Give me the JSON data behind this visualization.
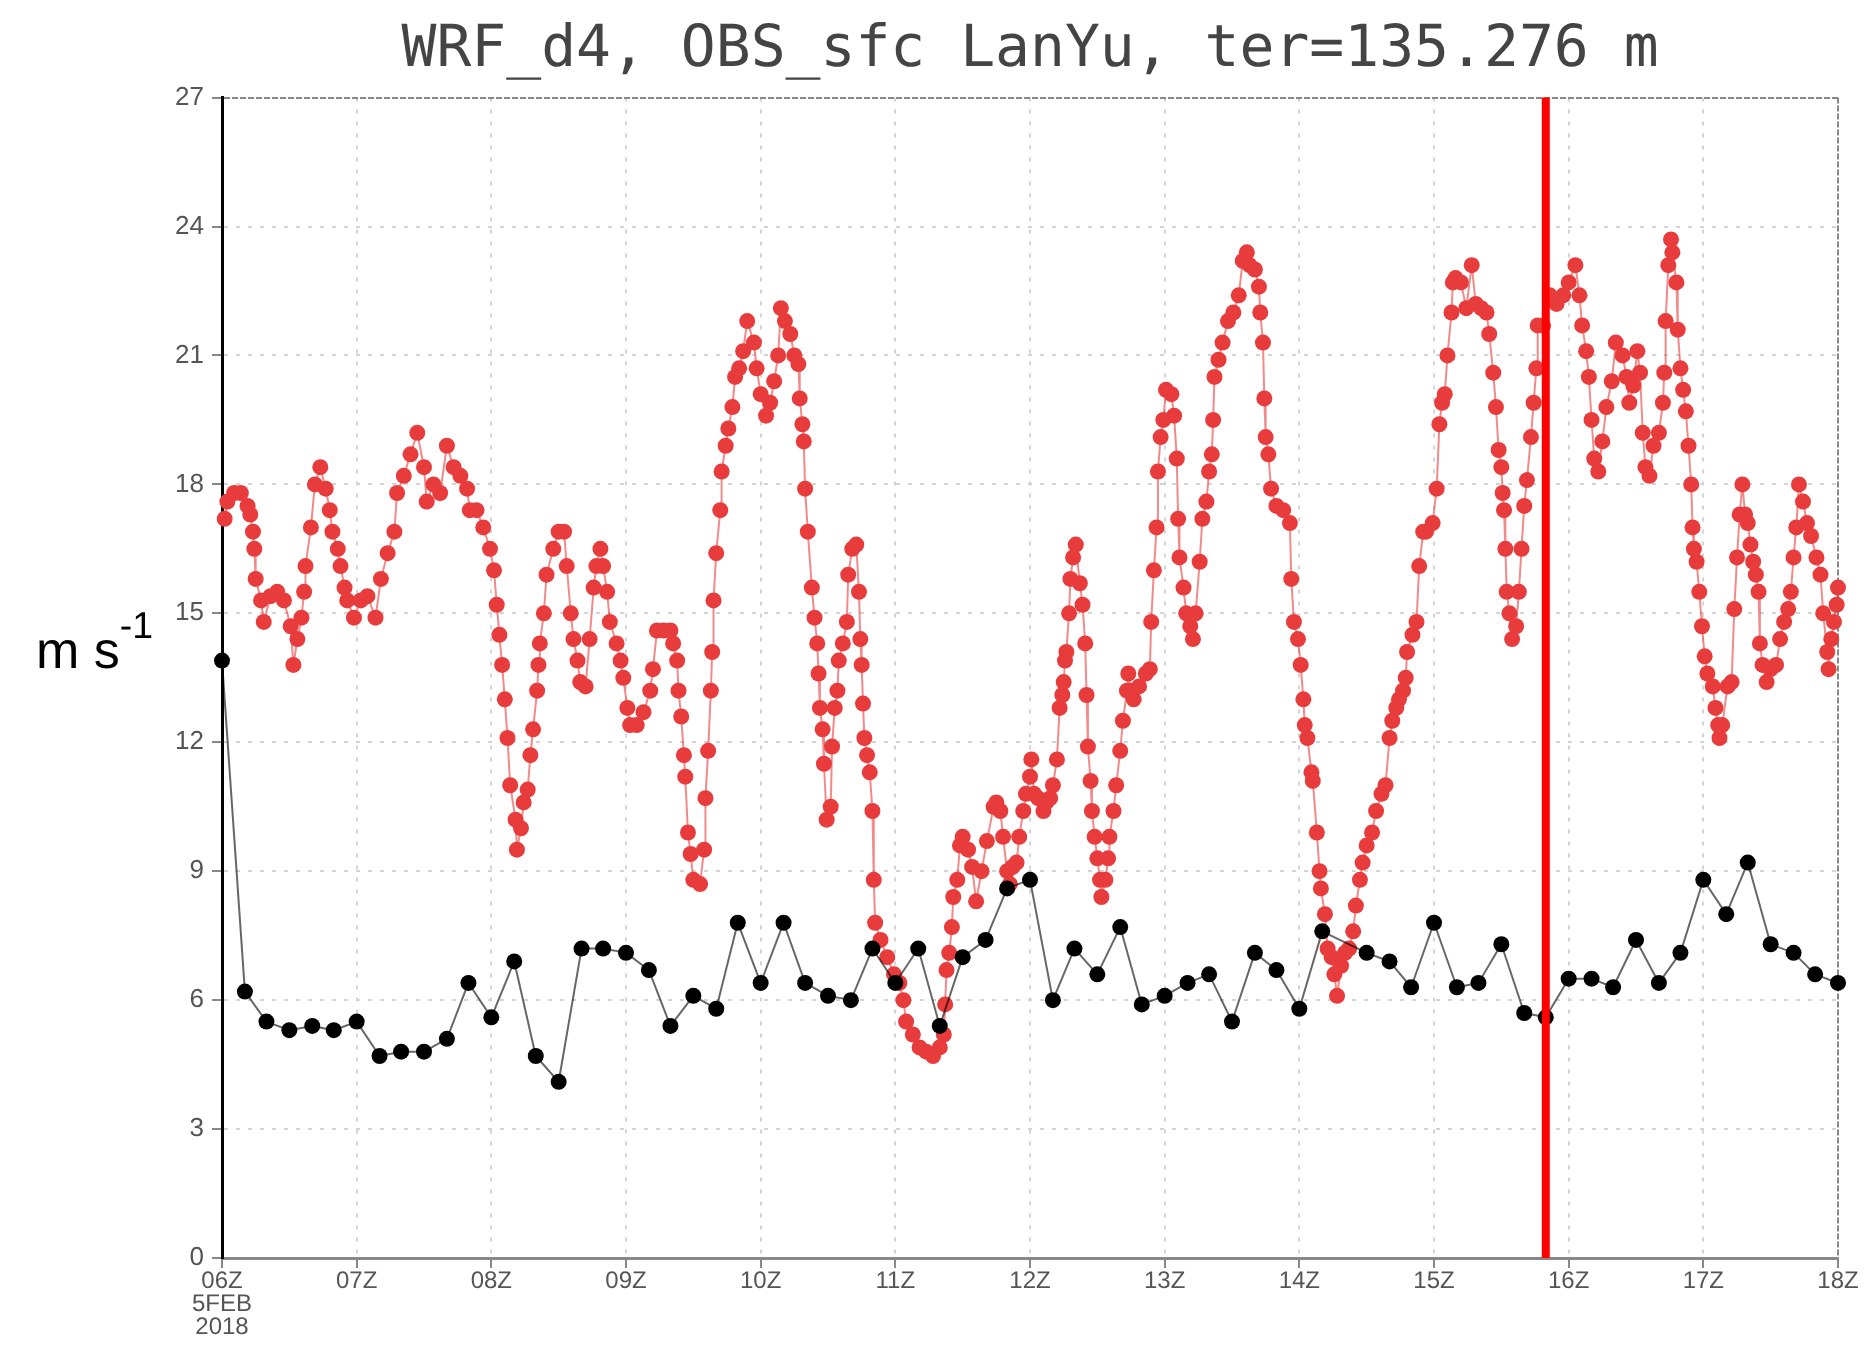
{
  "chart_data": {
    "type": "line",
    "title": "WRF_d4, OBS_sfc LanYu, ter=135.276 m",
    "ylabel": "m s$^{-1}$",
    "xlim": [
      6,
      18
    ],
    "xticks": [
      {
        "value": 6,
        "label": "06Z\n5FEB\n2018"
      },
      {
        "value": 7,
        "label": "07Z"
      },
      {
        "value": 8,
        "label": "08Z"
      },
      {
        "value": 9,
        "label": "09Z"
      },
      {
        "value": 10,
        "label": "10Z"
      },
      {
        "value": 11,
        "label": "11Z"
      },
      {
        "value": 12,
        "label": "12Z"
      },
      {
        "value": 13,
        "label": "13Z"
      },
      {
        "value": 14,
        "label": "14Z"
      },
      {
        "value": 15,
        "label": "15Z"
      },
      {
        "value": 16,
        "label": "16Z"
      },
      {
        "value": 17,
        "label": "17Z"
      },
      {
        "value": 18,
        "label": "18Z"
      }
    ],
    "ylim": [
      0,
      27
    ],
    "yticks": [
      0,
      3,
      6,
      9,
      12,
      15,
      18,
      21,
      24,
      27
    ],
    "grid": true,
    "marker": "circle",
    "series": [
      {
        "color": "#e83c3c",
        "x": [
          6.02,
          6.04,
          6.09,
          6.14,
          6.19,
          6.21,
          6.23,
          6.24,
          6.25,
          6.29,
          6.31,
          6.36,
          6.41,
          6.46,
          6.51,
          6.53,
          6.56,
          6.59,
          6.61,
          6.62,
          6.66,
          6.69,
          6.73,
          6.77,
          6.8,
          6.82,
          6.86,
          6.88,
          6.91,
          6.93,
          6.98,
          7.03,
          7.08,
          7.14,
          7.18,
          7.23,
          7.28,
          7.3,
          7.35,
          7.4,
          7.45,
          7.5,
          7.52,
          7.57,
          7.62,
          7.67,
          7.72,
          7.77,
          7.82,
          7.84,
          7.89,
          7.94,
          7.99,
          8.02,
          8.04,
          8.06,
          8.08,
          8.1,
          8.12,
          8.14,
          8.18,
          8.19,
          8.22,
          8.24,
          8.27,
          8.29,
          8.31,
          8.34,
          8.35,
          8.36,
          8.39,
          8.41,
          8.46,
          8.5,
          8.54,
          8.56,
          8.59,
          8.61,
          8.64,
          8.66,
          8.7,
          8.73,
          8.76,
          8.78,
          8.81,
          8.83,
          8.86,
          8.88,
          8.93,
          8.96,
          8.98,
          9.01,
          9.03,
          9.08,
          9.13,
          9.18,
          9.2,
          9.23,
          9.28,
          9.33,
          9.35,
          9.38,
          9.39,
          9.41,
          9.43,
          9.44,
          9.46,
          9.48,
          9.5,
          9.55,
          9.58,
          9.59,
          9.61,
          9.63,
          9.64,
          9.65,
          9.67,
          9.7,
          9.71,
          9.74,
          9.76,
          9.79,
          9.81,
          9.84,
          9.87,
          9.9,
          9.95,
          9.97,
          10,
          10.04,
          10.07,
          10.1,
          10.13,
          10.15,
          10.18,
          10.22,
          10.25,
          10.28,
          10.29,
          10.31,
          10.32,
          10.33,
          10.35,
          10.38,
          10.4,
          10.42,
          10.43,
          10.44,
          10.46,
          10.47,
          10.49,
          10.52,
          10.53,
          10.55,
          10.57,
          10.58,
          10.61,
          10.64,
          10.65,
          10.68,
          10.71,
          10.73,
          10.74,
          10.75,
          10.76,
          10.77,
          10.79,
          10.81,
          10.83,
          10.84,
          10.85,
          10.89,
          10.94,
          10.99,
          11.03,
          11.06,
          11.08,
          11.13,
          11.18,
          11.23,
          11.28,
          11.33,
          11.36,
          11.37,
          11.38,
          11.4,
          11.42,
          11.43,
          11.46,
          11.48,
          11.5,
          11.54,
          11.57,
          11.6,
          11.64,
          11.68,
          11.73,
          11.75,
          11.78,
          11.8,
          11.83,
          11.85,
          11.87,
          11.9,
          11.92,
          11.95,
          11.97,
          12,
          12.01,
          12.03,
          12.06,
          12.1,
          12.12,
          12.15,
          12.17,
          12.2,
          12.22,
          12.24,
          12.25,
          12.26,
          12.27,
          12.29,
          12.3,
          12.32,
          12.34,
          12.37,
          12.39,
          12.41,
          12.42,
          12.43,
          12.45,
          12.46,
          12.48,
          12.5,
          12.52,
          12.53,
          12.56,
          12.58,
          12.59,
          12.62,
          12.64,
          12.67,
          12.69,
          12.72,
          12.73,
          12.74,
          12.77,
          12.81,
          12.86,
          12.89,
          12.9,
          12.92,
          12.94,
          12.95,
          12.97,
          12.99,
          13.01,
          13.05,
          13.07,
          13.09,
          13.1,
          13.11,
          13.14,
          13.16,
          13.19,
          13.21,
          13.23,
          13.26,
          13.28,
          13.31,
          13.33,
          13.35,
          13.36,
          13.37,
          13.4,
          13.43,
          13.47,
          13.51,
          13.55,
          13.58,
          13.61,
          13.63,
          13.67,
          13.7,
          13.71,
          13.73,
          13.74,
          13.75,
          13.77,
          13.79,
          13.83,
          13.88,
          13.93,
          13.94,
          13.96,
          13.99,
          14.01,
          14.03,
          14.04,
          14.06,
          14.09,
          14.1,
          14.13,
          14.15,
          14.16,
          14.19,
          14.21,
          14.24,
          14.26,
          14.28,
          14.31,
          14.34,
          14.37,
          14.4,
          14.42,
          14.45,
          14.47,
          14.5,
          14.54,
          14.57,
          14.61,
          14.64,
          14.67,
          14.69,
          14.72,
          14.74,
          14.77,
          14.79,
          14.8,
          14.84,
          14.87,
          14.89,
          14.92,
          14.94,
          14.99,
          15.02,
          15.04,
          15.06,
          15.08,
          15.1,
          15.13,
          15.14,
          15.16,
          15.2,
          15.24,
          15.28,
          15.31,
          15.35,
          15.39,
          15.41,
          15.44,
          15.46,
          15.48,
          15.5,
          15.51,
          15.52,
          15.53,
          15.54,
          15.56,
          15.58,
          15.61,
          15.63,
          15.65,
          15.67,
          15.69,
          15.72,
          15.74,
          15.76,
          15.77,
          15.81,
          15.86,
          15.91,
          15.96,
          16,
          16.05,
          16.08,
          16.1,
          16.13,
          16.15,
          16.17,
          16.19,
          16.22,
          16.25,
          16.28,
          16.32,
          16.35,
          16.4,
          16.43,
          16.45,
          16.48,
          16.51,
          16.53,
          16.55,
          16.57,
          16.6,
          16.63,
          16.67,
          16.7,
          16.71,
          16.72,
          16.74,
          16.76,
          16.77,
          16.8,
          16.81,
          16.83,
          16.85,
          16.87,
          16.89,
          16.91,
          16.92,
          16.93,
          16.95,
          16.97,
          16.99,
          17.01,
          17.03,
          17.07,
          17.09,
          17.11,
          17.12,
          17.14,
          17.18,
          17.21,
          17.23,
          17.25,
          17.27,
          17.29,
          17.31,
          17.33,
          17.35,
          17.37,
          17.39,
          17.41,
          17.42,
          17.44,
          17.47,
          17.5,
          17.54,
          17.57,
          17.6,
          17.63,
          17.65,
          17.67,
          17.69,
          17.71,
          17.74,
          17.77,
          17.8,
          17.84,
          17.87,
          17.89,
          17.92,
          17.93,
          17.95,
          17.97,
          17.99,
          18
        ],
        "values": [
          17.2,
          17.6,
          17.8,
          17.8,
          17.5,
          17.3,
          16.9,
          16.5,
          15.8,
          15.3,
          14.8,
          15.4,
          15.5,
          15.3,
          14.7,
          13.8,
          14.4,
          14.9,
          15.5,
          16.1,
          17,
          18,
          18.4,
          17.9,
          17.4,
          16.9,
          16.5,
          16.1,
          15.6,
          15.3,
          14.9,
          15.3,
          15.4,
          14.9,
          15.8,
          16.4,
          16.9,
          17.8,
          18.2,
          18.7,
          19.2,
          18.4,
          17.6,
          18,
          17.8,
          18.9,
          18.4,
          18.2,
          17.9,
          17.4,
          17.4,
          17,
          16.5,
          16,
          15.2,
          14.5,
          13.8,
          13,
          12.1,
          11,
          10.2,
          9.5,
          10,
          10.6,
          10.9,
          11.7,
          12.3,
          13.2,
          13.8,
          14.3,
          15,
          15.9,
          16.5,
          16.9,
          16.9,
          16.1,
          15,
          14.4,
          13.9,
          13.4,
          13.3,
          14.4,
          15.6,
          16.1,
          16.5,
          16.1,
          15.5,
          14.8,
          14.3,
          13.9,
          13.5,
          12.8,
          12.4,
          12.4,
          12.7,
          13.2,
          13.7,
          14.6,
          14.6,
          14.6,
          14.3,
          13.9,
          13.2,
          12.6,
          11.7,
          11.2,
          9.9,
          9.4,
          8.8,
          8.7,
          9.5,
          10.7,
          11.8,
          13.2,
          14.1,
          15.3,
          16.4,
          17.4,
          18.3,
          18.9,
          19.3,
          19.8,
          20.5,
          20.7,
          21.1,
          21.8,
          21.3,
          20.7,
          20.1,
          19.6,
          19.9,
          20.4,
          21,
          22.1,
          21.8,
          21.5,
          21,
          20.8,
          20,
          19.4,
          19,
          17.9,
          16.9,
          15.6,
          14.9,
          14.3,
          13.6,
          12.8,
          12.3,
          11.5,
          10.2,
          10.5,
          11.9,
          12.8,
          13.2,
          13.9,
          14.3,
          14.8,
          15.9,
          16.5,
          16.6,
          15.5,
          14.4,
          13.8,
          12.9,
          12.1,
          11.7,
          11.3,
          10.4,
          8.8,
          7.8,
          7.4,
          7,
          6.6,
          6.4,
          6,
          5.5,
          5.2,
          4.9,
          4.8,
          4.7,
          4.9,
          5.2,
          5.9,
          6.7,
          7.1,
          7.7,
          8.4,
          8.8,
          9.6,
          9.8,
          9.5,
          9.1,
          8.3,
          9,
          9.7,
          10.5,
          10.6,
          10.4,
          9.8,
          9,
          8.7,
          9.1,
          9.2,
          9.8,
          10.4,
          10.8,
          11.2,
          11.6,
          10.8,
          10.7,
          10.4,
          10.6,
          10.7,
          11,
          11.6,
          12.8,
          13.1,
          13.4,
          13.9,
          14.1,
          15,
          15.8,
          16.3,
          16.6,
          15.7,
          15.2,
          14.3,
          13.1,
          11.9,
          11.1,
          10.4,
          9.8,
          9.3,
          8.8,
          8.4,
          8.8,
          9.3,
          9.8,
          10.4,
          11,
          11.8,
          12.5,
          13.2,
          13.6,
          13.2,
          13,
          13.3,
          13.6,
          13.7,
          14.8,
          16,
          17,
          18.3,
          19.1,
          19.5,
          20.2,
          20.1,
          19.6,
          18.6,
          17.2,
          16.3,
          15.6,
          15,
          14.7,
          14.4,
          15,
          16.2,
          17.2,
          17.6,
          18.3,
          18.7,
          19.5,
          20.5,
          20.9,
          21.3,
          21.8,
          22,
          22.4,
          23.2,
          23.4,
          23.1,
          23,
          22.6,
          22,
          21.3,
          20,
          19.1,
          18.7,
          17.9,
          17.5,
          17.4,
          17.1,
          15.8,
          14.8,
          14.4,
          13.8,
          13,
          12.4,
          12.1,
          11.3,
          11.1,
          9.9,
          9,
          8.6,
          8,
          7.2,
          7,
          6.6,
          6.1,
          6.8,
          7.1,
          7.2,
          7.6,
          8.2,
          8.8,
          9.2,
          9.6,
          9.9,
          10.4,
          10.8,
          11,
          12.1,
          12.5,
          12.8,
          13,
          13.2,
          13.5,
          14.1,
          14.5,
          14.8,
          16.1,
          16.9,
          16.9,
          17.1,
          17.9,
          19.4,
          19.9,
          20.1,
          21,
          22,
          22.7,
          22.8,
          22.7,
          22.1,
          23.1,
          22.2,
          22.1,
          22,
          21.5,
          20.6,
          19.8,
          18.8,
          18.4,
          17.8,
          17.4,
          16.5,
          15.5,
          15,
          14.4,
          14.7,
          15.5,
          16.5,
          17.5,
          18.1,
          19.1,
          19.9,
          20.7,
          21.7,
          21.7,
          22.4,
          22.2,
          22.4,
          22.7,
          23.1,
          22.4,
          21.7,
          21.1,
          20.5,
          19.5,
          18.6,
          18.3,
          19,
          19.8,
          20.4,
          21.3,
          21,
          20.5,
          19.9,
          20.3,
          21.1,
          20.6,
          19.2,
          18.4,
          18.2,
          18.9,
          19.2,
          19.9,
          20.6,
          21.8,
          23.1,
          23.7,
          23.4,
          22.7,
          21.6,
          20.7,
          20.2,
          19.7,
          18.9,
          18,
          17,
          16.5,
          16.2,
          15.5,
          14.7,
          14,
          13.6,
          13.3,
          12.8,
          12.4,
          12.1,
          12.4,
          13.3,
          13.4,
          15.1,
          16.3,
          17.3,
          18,
          17.3,
          17.1,
          16.6,
          16.2,
          15.9,
          15.5,
          14.3,
          13.8,
          13.4,
          13.7,
          13.8,
          14.4,
          14.8,
          15.1,
          15.5,
          16.3,
          17,
          18,
          17.6,
          17.1,
          16.8,
          16.3,
          15.9,
          15,
          14.1,
          13.7,
          14.4,
          14.8,
          15.2,
          15.6
        ]
      },
      {
        "color": "#000000",
        "x": [
          6,
          6.17,
          6.33,
          6.5,
          6.67,
          6.83,
          7,
          7.17,
          7.33,
          7.5,
          7.67,
          7.83,
          8,
          8.17,
          8.33,
          8.5,
          8.67,
          8.83,
          9,
          9.17,
          9.33,
          9.5,
          9.67,
          9.83,
          10,
          10.17,
          10.33,
          10.5,
          10.67,
          10.83,
          11,
          11.17,
          11.33,
          11.5,
          11.67,
          11.83,
          12,
          12.17,
          12.33,
          12.5,
          12.67,
          12.83,
          13,
          13.17,
          13.33,
          13.5,
          13.67,
          13.83,
          14,
          14.17,
          14.33,
          14.5,
          14.67,
          14.83,
          15,
          15.17,
          15.33,
          15.5,
          15.67,
          15.83,
          16,
          16.17,
          16.33,
          16.5,
          16.67,
          16.83,
          17,
          17.17,
          17.33,
          17.5,
          17.67,
          17.83,
          18
        ],
        "values": [
          13.9,
          6.2,
          5.5,
          5.3,
          5.4,
          5.3,
          5.5,
          4.7,
          4.8,
          4.8,
          5.1,
          6.4,
          5.6,
          6.9,
          4.7,
          4.1,
          7.2,
          7.2,
          7.1,
          6.7,
          5.4,
          6.1,
          5.8,
          7.8,
          6.4,
          7.8,
          6.4,
          6.1,
          6,
          7.2,
          6.4,
          7.2,
          5.4,
          7,
          7.4,
          8.6,
          8.8,
          6,
          7.2,
          6.6,
          7.7,
          5.9,
          6.1,
          6.4,
          6.6,
          5.5,
          7.1,
          6.7,
          5.8,
          7.6,
          null,
          7.1,
          6.9,
          6.3,
          7.8,
          6.3,
          6.4,
          7.3,
          5.7,
          5.6,
          6.5,
          6.5,
          6.3,
          7.4,
          6.4,
          7.1,
          8.8,
          8,
          9.2,
          7.3,
          7.1,
          6.6,
          6.4
        ]
      }
    ],
    "ref_lines": [
      {
        "axis": "x",
        "value": 15.83,
        "color": "#ff0000"
      }
    ]
  }
}
